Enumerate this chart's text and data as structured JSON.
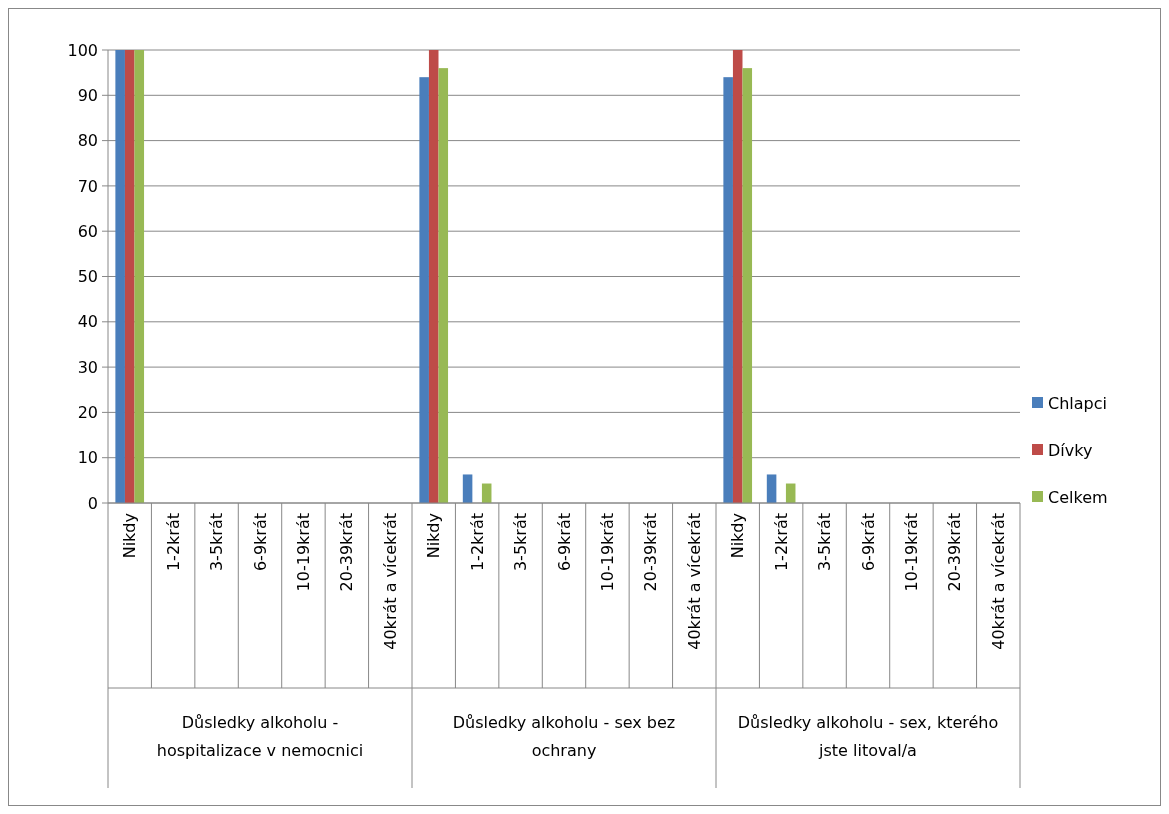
{
  "chart_data": {
    "type": "bar",
    "categories": [
      "Nikdy",
      "1-2krát",
      "3-5krát",
      "6-9krát",
      "10-19krát",
      "20-39krát",
      "40krát a vícekrát",
      "Nikdy",
      "1-2krát",
      "3-5krát",
      "6-9krát",
      "10-19krát",
      "20-39krát",
      "40krát a vícekrát",
      "Nikdy",
      "1-2krát",
      "3-5krát",
      "6-9krát",
      "10-19krát",
      "20-39krát",
      "40krát a vícekrát"
    ],
    "series": [
      {
        "name": "Chlapci",
        "color": "#4a7ebb",
        "values": [
          100,
          0,
          0,
          0,
          0,
          0,
          0,
          94,
          6.3,
          0,
          0,
          0,
          0,
          0,
          94,
          6.3,
          0,
          0,
          0,
          0,
          0
        ]
      },
      {
        "name": "Dívky",
        "color": "#be4b48",
        "values": [
          100,
          0,
          0,
          0,
          0,
          0,
          0,
          100,
          0,
          0,
          0,
          0,
          0,
          0,
          100,
          0,
          0,
          0,
          0,
          0,
          0
        ]
      },
      {
        "name": "Celkem",
        "color": "#98b954",
        "values": [
          100,
          0,
          0,
          0,
          0,
          0,
          0,
          96,
          4.3,
          0,
          0,
          0,
          0,
          0,
          96,
          4.3,
          0,
          0,
          0,
          0,
          0
        ]
      }
    ],
    "annotations": [
      "Důsledky alkoholu - hospitalizace v nemocnici",
      "Důsledky alkoholu - sex bez ochrany",
      "Důsledky alkoholu - sex, kterého jste litoval/a"
    ],
    "ylim": [
      0,
      100
    ],
    "yticks": [
      0,
      10,
      20,
      30,
      40,
      50,
      60,
      70,
      80,
      90,
      100
    ],
    "grid": "y",
    "legend": "right"
  }
}
